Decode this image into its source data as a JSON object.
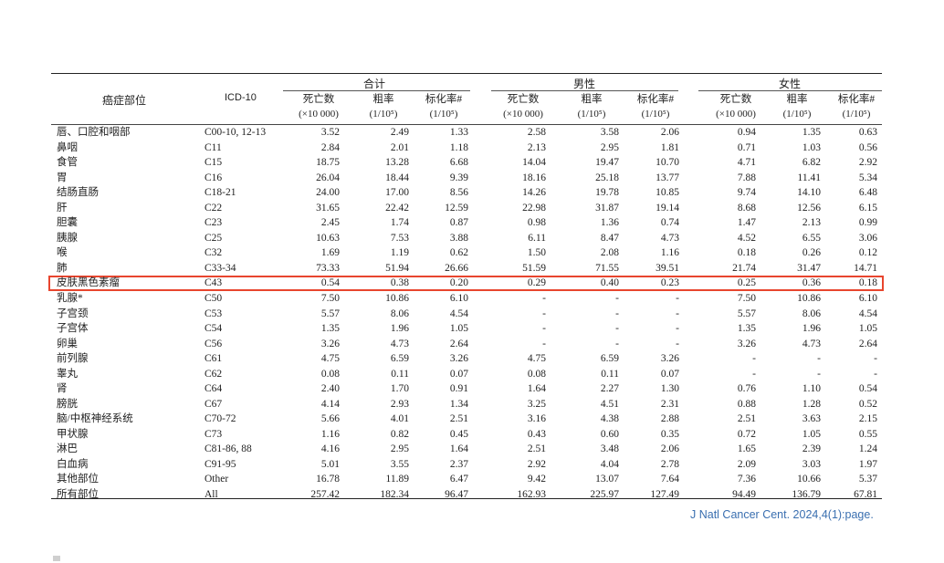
{
  "header": {
    "site": "癌症部位",
    "icd": "ICD-10",
    "groups": [
      "合计",
      "男性",
      "女性"
    ],
    "sub": [
      {
        "line1": "死亡数",
        "line2": "(×10 000)"
      },
      {
        "line1": "粗率",
        "line2": "(1/10⁵)"
      },
      {
        "line1": "标化率#",
        "line2": "(1/10⁵)"
      }
    ]
  },
  "rows": [
    {
      "site": "唇、口腔和咽部",
      "icd": "C00-10, 12-13",
      "v": [
        "3.52",
        "2.49",
        "1.33",
        "2.58",
        "3.58",
        "2.06",
        "0.94",
        "1.35",
        "0.63"
      ]
    },
    {
      "site": "鼻咽",
      "icd": "C11",
      "v": [
        "2.84",
        "2.01",
        "1.18",
        "2.13",
        "2.95",
        "1.81",
        "0.71",
        "1.03",
        "0.56"
      ]
    },
    {
      "site": "食管",
      "icd": "C15",
      "v": [
        "18.75",
        "13.28",
        "6.68",
        "14.04",
        "19.47",
        "10.70",
        "4.71",
        "6.82",
        "2.92"
      ]
    },
    {
      "site": "胃",
      "icd": "C16",
      "v": [
        "26.04",
        "18.44",
        "9.39",
        "18.16",
        "25.18",
        "13.77",
        "7.88",
        "11.41",
        "5.34"
      ]
    },
    {
      "site": "结肠直肠",
      "icd": "C18-21",
      "v": [
        "24.00",
        "17.00",
        "8.56",
        "14.26",
        "19.78",
        "10.85",
        "9.74",
        "14.10",
        "6.48"
      ]
    },
    {
      "site": "肝",
      "icd": "C22",
      "v": [
        "31.65",
        "22.42",
        "12.59",
        "22.98",
        "31.87",
        "19.14",
        "8.68",
        "12.56",
        "6.15"
      ]
    },
    {
      "site": "胆囊",
      "icd": "C23",
      "v": [
        "2.45",
        "1.74",
        "0.87",
        "0.98",
        "1.36",
        "0.74",
        "1.47",
        "2.13",
        "0.99"
      ]
    },
    {
      "site": "胰腺",
      "icd": "C25",
      "v": [
        "10.63",
        "7.53",
        "3.88",
        "6.11",
        "8.47",
        "4.73",
        "4.52",
        "6.55",
        "3.06"
      ]
    },
    {
      "site": "喉",
      "icd": "C32",
      "v": [
        "1.69",
        "1.19",
        "0.62",
        "1.50",
        "2.08",
        "1.16",
        "0.18",
        "0.26",
        "0.12"
      ]
    },
    {
      "site": "肺",
      "icd": "C33-34",
      "v": [
        "73.33",
        "51.94",
        "26.66",
        "51.59",
        "71.55",
        "39.51",
        "21.74",
        "31.47",
        "14.71"
      ]
    },
    {
      "site": "皮肤黑色素瘤",
      "icd": "C43",
      "v": [
        "0.54",
        "0.38",
        "0.20",
        "0.29",
        "0.40",
        "0.23",
        "0.25",
        "0.36",
        "0.18"
      ]
    },
    {
      "site": "乳腺*",
      "icd": "C50",
      "v": [
        "7.50",
        "10.86",
        "6.10",
        "-",
        "-",
        "-",
        "7.50",
        "10.86",
        "6.10"
      ]
    },
    {
      "site": "子宫颈",
      "icd": "C53",
      "v": [
        "5.57",
        "8.06",
        "4.54",
        "-",
        "-",
        "-",
        "5.57",
        "8.06",
        "4.54"
      ]
    },
    {
      "site": "子宫体",
      "icd": "C54",
      "v": [
        "1.35",
        "1.96",
        "1.05",
        "-",
        "-",
        "-",
        "1.35",
        "1.96",
        "1.05"
      ]
    },
    {
      "site": "卵巢",
      "icd": "C56",
      "v": [
        "3.26",
        "4.73",
        "2.64",
        "-",
        "-",
        "-",
        "3.26",
        "4.73",
        "2.64"
      ]
    },
    {
      "site": "前列腺",
      "icd": "C61",
      "v": [
        "4.75",
        "6.59",
        "3.26",
        "4.75",
        "6.59",
        "3.26",
        "-",
        "-",
        "-"
      ]
    },
    {
      "site": "睾丸",
      "icd": "C62",
      "v": [
        "0.08",
        "0.11",
        "0.07",
        "0.08",
        "0.11",
        "0.07",
        "-",
        "-",
        "-"
      ]
    },
    {
      "site": "肾",
      "icd": "C64",
      "v": [
        "2.40",
        "1.70",
        "0.91",
        "1.64",
        "2.27",
        "1.30",
        "0.76",
        "1.10",
        "0.54"
      ]
    },
    {
      "site": "膀胱",
      "icd": "C67",
      "v": [
        "4.14",
        "2.93",
        "1.34",
        "3.25",
        "4.51",
        "2.31",
        "0.88",
        "1.28",
        "0.52"
      ]
    },
    {
      "site": "脑/中枢神经系统",
      "icd": "C70-72",
      "v": [
        "5.66",
        "4.01",
        "2.51",
        "3.16",
        "4.38",
        "2.88",
        "2.51",
        "3.63",
        "2.15"
      ]
    },
    {
      "site": "甲状腺",
      "icd": "C73",
      "v": [
        "1.16",
        "0.82",
        "0.45",
        "0.43",
        "0.60",
        "0.35",
        "0.72",
        "1.05",
        "0.55"
      ]
    },
    {
      "site": "淋巴",
      "icd": "C81-86, 88",
      "v": [
        "4.16",
        "2.95",
        "1.64",
        "2.51",
        "3.48",
        "2.06",
        "1.65",
        "2.39",
        "1.24"
      ]
    },
    {
      "site": "白血病",
      "icd": "C91-95",
      "v": [
        "5.01",
        "3.55",
        "2.37",
        "2.92",
        "4.04",
        "2.78",
        "2.09",
        "3.03",
        "1.97"
      ]
    },
    {
      "site": "其他部位",
      "icd": "Other",
      "v": [
        "16.78",
        "11.89",
        "6.47",
        "9.42",
        "13.07",
        "7.64",
        "7.36",
        "10.66",
        "5.37"
      ]
    },
    {
      "site": "所有部位",
      "icd": "All",
      "v": [
        "257.42",
        "182.34",
        "96.47",
        "162.93",
        "225.97",
        "127.49",
        "94.49",
        "136.79",
        "67.81"
      ]
    }
  ],
  "highlight_row_index": 10,
  "highlight_color": "#e8452e",
  "citation": "J Natl Cancer Cent. 2024,4(1):page.",
  "citation_color": "#3a6fb0"
}
